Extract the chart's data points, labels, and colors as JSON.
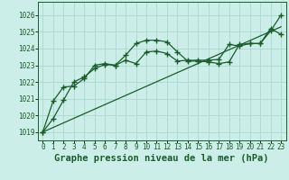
{
  "title": "Graphe pression niveau de la mer (hPa)",
  "bg_color": "#cceee8",
  "grid_color": "#aad8d0",
  "line_color": "#1a5c2a",
  "marker_color": "#1a5c2a",
  "xlim": [
    -0.5,
    23.5
  ],
  "ylim": [
    1018.5,
    1026.8
  ],
  "yticks": [
    1019,
    1020,
    1021,
    1022,
    1023,
    1024,
    1025,
    1026
  ],
  "xticks": [
    0,
    1,
    2,
    3,
    4,
    5,
    6,
    7,
    8,
    9,
    10,
    11,
    12,
    13,
    14,
    15,
    16,
    17,
    18,
    19,
    20,
    21,
    22,
    23
  ],
  "series1_x": [
    0,
    1,
    2,
    3,
    4,
    5,
    6,
    7,
    8,
    9,
    10,
    11,
    12,
    13,
    14,
    15,
    16,
    17,
    18,
    19,
    20,
    21,
    22,
    23
  ],
  "series1_y": [
    1019.0,
    1019.8,
    1020.9,
    1022.0,
    1022.3,
    1022.8,
    1023.05,
    1023.0,
    1023.6,
    1024.3,
    1024.5,
    1024.5,
    1024.4,
    1023.8,
    1023.25,
    1023.25,
    1023.2,
    1023.1,
    1023.2,
    1024.25,
    1024.3,
    1024.3,
    1025.05,
    1026.0
  ],
  "series2_x": [
    0,
    1,
    2,
    3,
    4,
    5,
    6,
    7,
    8,
    9,
    10,
    11,
    12,
    13,
    14,
    15,
    16,
    17,
    18,
    19,
    20,
    21,
    22,
    23
  ],
  "series2_y": [
    1019.0,
    1020.85,
    1021.7,
    1021.75,
    1022.2,
    1023.0,
    1023.1,
    1023.0,
    1023.3,
    1023.1,
    1023.8,
    1023.85,
    1023.7,
    1023.25,
    1023.3,
    1023.3,
    1023.3,
    1023.35,
    1024.25,
    1024.15,
    1024.3,
    1024.3,
    1025.2,
    1024.85
  ],
  "trend_x": [
    0,
    23
  ],
  "trend_y": [
    1019.0,
    1025.3
  ],
  "title_fontsize": 7.5,
  "tick_fontsize": 5.5
}
